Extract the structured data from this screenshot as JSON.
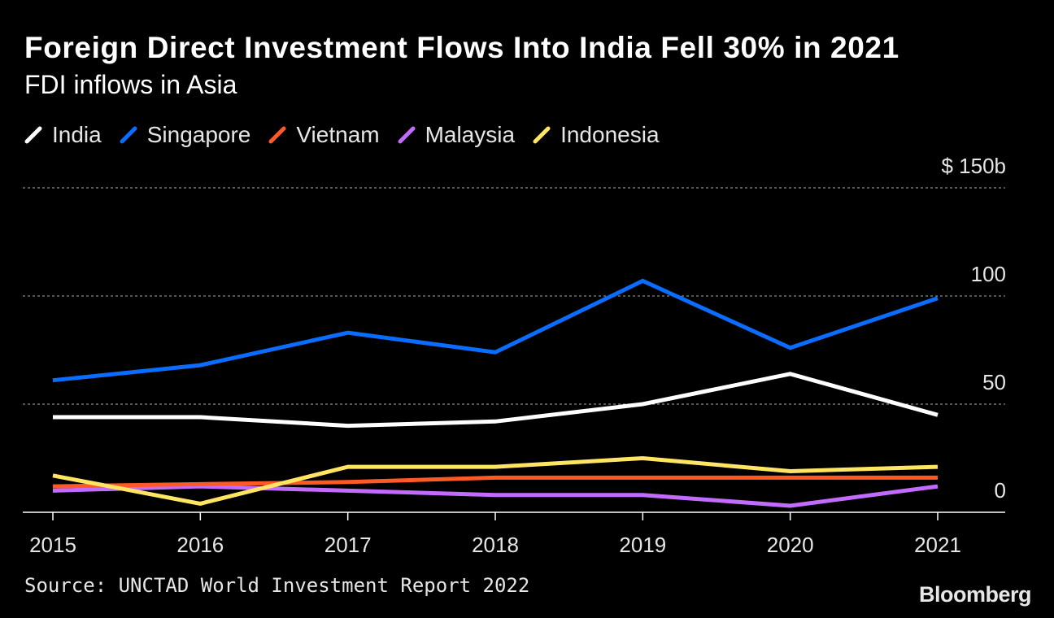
{
  "header": {
    "title": "Foreign Direct Investment Flows Into India Fell 30% in 2021",
    "subtitle": "FDI inflows in Asia"
  },
  "footer": {
    "source": "Source: UNCTAD World Investment Report 2022",
    "brand": "Bloomberg"
  },
  "chart_data": {
    "type": "line",
    "title": "Foreign Direct Investment Flows Into India Fell 30% in 2021",
    "subtitle": "FDI inflows in Asia",
    "xlabel": "",
    "ylabel": "",
    "x": [
      "2015",
      "2016",
      "2017",
      "2018",
      "2019",
      "2020",
      "2021"
    ],
    "ylim": [
      0,
      150
    ],
    "yticks": [
      0,
      50,
      100,
      150
    ],
    "ytick_labels": [
      "0",
      "50",
      "100",
      "$ 150b"
    ],
    "grid": true,
    "legend_position": "top-left",
    "series": [
      {
        "name": "India",
        "color": "#ffffff",
        "values": [
          44,
          44,
          40,
          42,
          50,
          64,
          45
        ]
      },
      {
        "name": "Singapore",
        "color": "#0a6dff",
        "values": [
          61,
          68,
          83,
          74,
          107,
          76,
          99
        ]
      },
      {
        "name": "Vietnam",
        "color": "#ff5a26",
        "values": [
          12,
          13,
          14,
          16,
          16,
          16,
          16
        ]
      },
      {
        "name": "Malaysia",
        "color": "#c36bff",
        "values": [
          10,
          12,
          10,
          8,
          8,
          3,
          12
        ]
      },
      {
        "name": "Indonesia",
        "color": "#ffe562",
        "values": [
          17,
          4,
          21,
          21,
          25,
          19,
          21
        ]
      }
    ]
  }
}
